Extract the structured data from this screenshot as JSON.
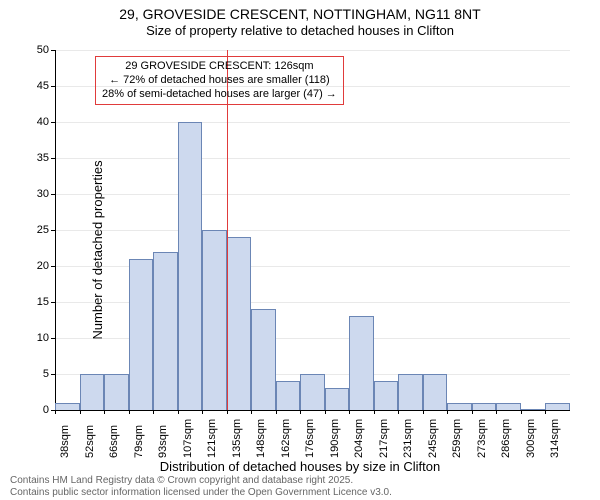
{
  "title": {
    "line1": "29, GROVESIDE CRESCENT, NOTTINGHAM, NG11 8NT",
    "line2": "Size of property relative to detached houses in Clifton"
  },
  "chart": {
    "type": "histogram",
    "y_axis": {
      "label": "Number of detached properties",
      "min": 0,
      "max": 50,
      "tick_step": 5,
      "ticks": [
        0,
        5,
        10,
        15,
        20,
        25,
        30,
        35,
        40,
        45,
        50
      ]
    },
    "x_axis": {
      "label": "Distribution of detached houses by size in Clifton",
      "ticks": [
        "38sqm",
        "52sqm",
        "66sqm",
        "79sqm",
        "93sqm",
        "107sqm",
        "121sqm",
        "135sqm",
        "148sqm",
        "162sqm",
        "176sqm",
        "190sqm",
        "204sqm",
        "217sqm",
        "231sqm",
        "245sqm",
        "259sqm",
        "273sqm",
        "286sqm",
        "300sqm",
        "314sqm"
      ]
    },
    "bars": {
      "values": [
        1,
        5,
        5,
        21,
        22,
        40,
        25,
        24,
        14,
        4,
        5,
        3,
        13,
        4,
        5,
        5,
        1,
        1,
        1,
        0,
        1
      ],
      "fill_color": "#cdd9ee",
      "border_color": "#6b86b5",
      "border_width": 1
    },
    "reference_line": {
      "position_index": 7,
      "color": "#e03b3b",
      "width": 1
    },
    "annotation": {
      "lines": [
        "29 GROVESIDE CRESCENT: 126sqm",
        "← 72% of detached houses are smaller (118)",
        "28% of semi-detached houses are larger (47) →"
      ],
      "border_color": "#e03b3b",
      "text_color": "#000000",
      "fontsize": 11
    },
    "background_color": "#ffffff",
    "grid_color": "#c0c0c0",
    "axis_color": "#000000",
    "label_fontsize": 13,
    "tick_fontsize": 11
  },
  "footer": {
    "line1": "Contains HM Land Registry data © Crown copyright and database right 2025.",
    "line2": "Contains public sector information licensed under the Open Government Licence v3.0."
  }
}
